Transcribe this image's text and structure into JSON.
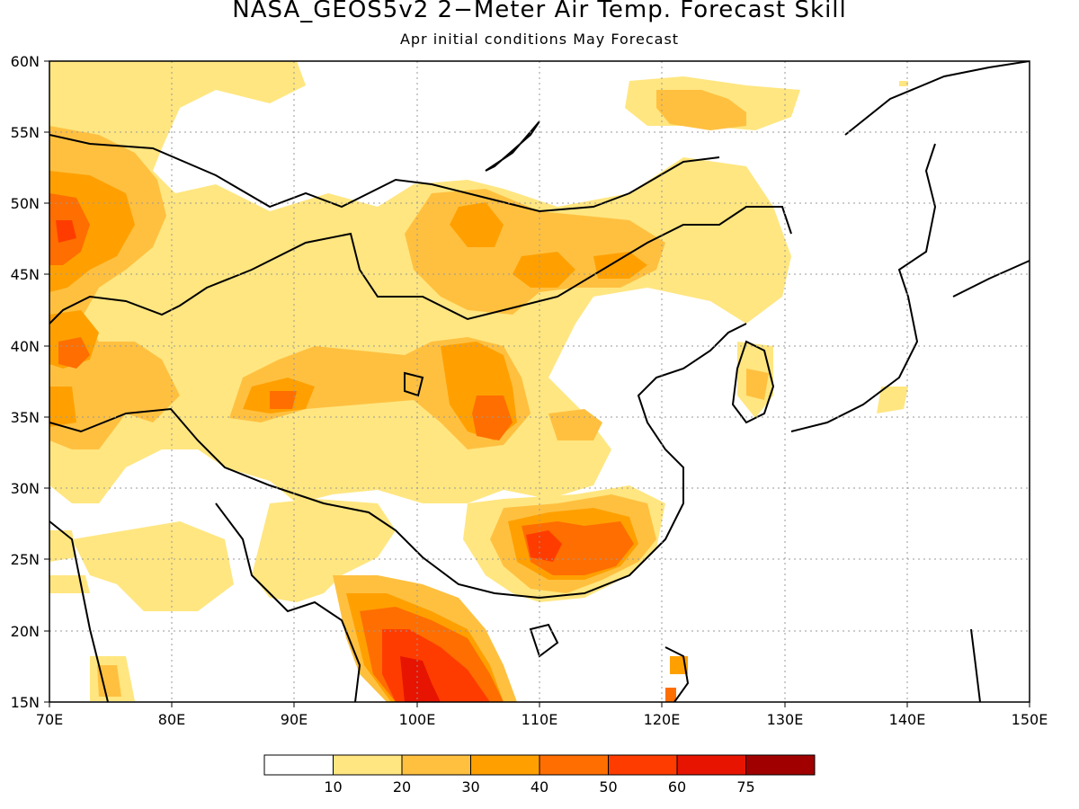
{
  "header": {
    "title": "NASA_GEOS5v2 2−Meter Air Temp. Forecast Skill",
    "subtitle": "Apr initial conditions  May Forecast"
  },
  "map": {
    "lon_range": [
      70,
      150
    ],
    "lat_range": [
      15,
      60
    ],
    "x_ticks": [
      "70E",
      "80E",
      "90E",
      "100E",
      "110E",
      "120E",
      "130E",
      "140E",
      "150E"
    ],
    "y_ticks": [
      "15N",
      "20N",
      "25N",
      "30N",
      "35N",
      "40N",
      "45N",
      "50N",
      "55N",
      "60N"
    ]
  },
  "colorbar": {
    "labels": [
      "10",
      "20",
      "30",
      "40",
      "50",
      "60",
      "75"
    ],
    "colors": [
      "#ffffff",
      "#ffe680",
      "#ffc040",
      "#ffa000",
      "#ff6e00",
      "#ff3c00",
      "#e61400",
      "#a00000"
    ]
  }
}
